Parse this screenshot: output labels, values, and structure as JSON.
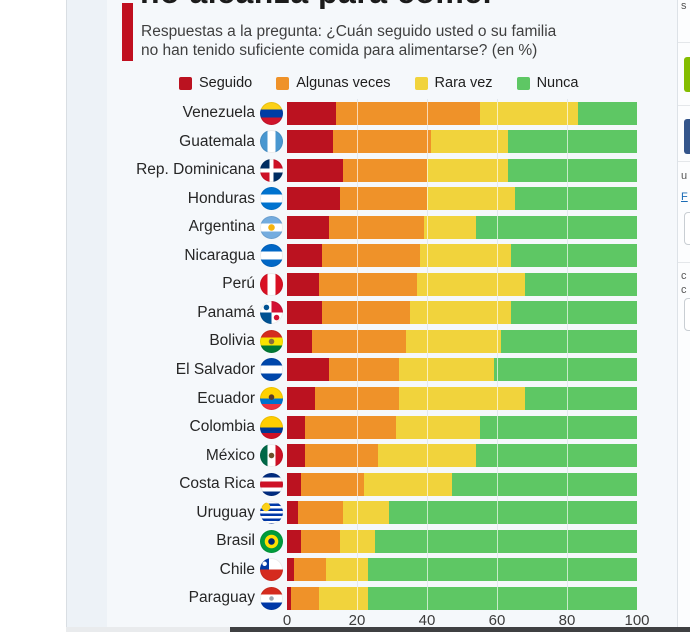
{
  "header": {
    "title_clipped": "no alcanza para comer",
    "subtitle_line1": "Respuestas a la pregunta: ¿Cuán seguido usted o su familia",
    "subtitle_line2": "no han tenido suficiente comida para alimentarse? (en %)",
    "accent_color": "#c00f1f"
  },
  "chart_data": {
    "type": "bar",
    "orientation": "horizontal",
    "stacked": true,
    "title": "no alcanza para comer",
    "subtitle": "Respuestas a la pregunta: ¿Cuán seguido usted o su familia no han tenido suficiente comida para alimentarse? (en %)",
    "legend": [
      "Seguido",
      "Algunas veces",
      "Rara vez",
      "Nunca"
    ],
    "legend_position": "top",
    "colors": [
      "#bb1220",
      "#ef9229",
      "#f1d33c",
      "#5ec764"
    ],
    "xlim": [
      0,
      100
    ],
    "x_ticks": [
      "0",
      "20",
      "40",
      "60",
      "80",
      "100"
    ],
    "grid": true,
    "categories": [
      "Venezuela",
      "Guatemala",
      "Rep. Dominicana",
      "Honduras",
      "Argentina",
      "Nicaragua",
      "Perú",
      "Panamá",
      "Bolivia",
      "El Salvador",
      "Ecuador",
      "Colombia",
      "México",
      "Costa Rica",
      "Uruguay",
      "Brasil",
      "Chile",
      "Paraguay"
    ],
    "series": [
      {
        "name": "Seguido",
        "values": [
          14,
          13,
          16,
          15,
          12,
          10,
          9,
          10,
          7,
          12,
          8,
          5,
          5,
          4,
          3,
          4,
          2,
          1
        ]
      },
      {
        "name": "Algunas veces",
        "values": [
          41,
          28,
          24,
          25,
          27,
          28,
          28,
          25,
          27,
          20,
          24,
          26,
          21,
          18,
          13,
          11,
          9,
          8
        ]
      },
      {
        "name": "Rara vez",
        "values": [
          28,
          22,
          23,
          25,
          15,
          26,
          31,
          29,
          27,
          27,
          36,
          24,
          28,
          25,
          13,
          10,
          12,
          14
        ]
      },
      {
        "name": "Nunca",
        "values": [
          17,
          37,
          37,
          35,
          46,
          36,
          32,
          36,
          39,
          41,
          32,
          45,
          46,
          53,
          71,
          75,
          77,
          77
        ]
      }
    ]
  },
  "flags": [
    "linear-gradient(180deg,#fcd116 0 33%,#003da5 33% 67%,#cf142b 67%)",
    "linear-gradient(90deg,#4997d0 0 33%,#ffffff 33% 67%,#4997d0 67%)",
    "linear-gradient(90deg,transparent 0 42%,#ffffff 42% 58%,transparent 58%),linear-gradient(180deg,transparent 0 42%,#ffffff 42% 58%,transparent 58%),conic-gradient(#ce1126 0 90deg,#002d62 90deg 180deg,#ce1126 180deg 270deg,#002d62 270deg)",
    "linear-gradient(180deg,#0073cf 0 33%,#ffffff 33% 67%,#0073cf 67%)",
    "radial-gradient(circle at 50% 50%,#f6b40e 0 3px,transparent 3.5px),linear-gradient(180deg,#74acdf 0 33%,#ffffff 33% 67%,#74acdf 67%)",
    "linear-gradient(180deg,#0067c6 0 33%,#ffffff 33% 67%,#0067c6 67%)",
    "linear-gradient(90deg,#d91023 0 33%,#ffffff 33% 67%,#d91023 67%)",
    "radial-gradient(circle at 28% 28%,#005293 0 2.5px,transparent 3px),radial-gradient(circle at 72% 72%,#d21034 0 2.5px,transparent 3px),conic-gradient(#d21034 0 90deg,#ffffff 90deg 180deg,#005293 180deg 270deg,#ffffff 270deg)",
    "radial-gradient(circle at 50% 50%,#8a6d3b 0 2.5px,transparent 3px),linear-gradient(180deg,#d52b1e 0 33%,#f9e300 33% 67%,#007934 67%)",
    "linear-gradient(180deg,#0047ab 0 33%,#ffffff 33% 67%,#0047ab 67%)",
    "radial-gradient(circle at 50% 44%,#5b3a29 0 2.5px,transparent 3px),linear-gradient(180deg,#ffd100 0 50%,#0072ce 50% 75%,#ef3340 75%)",
    "linear-gradient(180deg,#ffcd00 0 50%,#003893 50% 75%,#ce1126 75%)",
    "radial-gradient(circle at 50% 50%,#6b4f2a 0 2.5px,transparent 3px),linear-gradient(90deg,#006847 0 33%,#ffffff 33% 67%,#ce1126 67%)",
    "linear-gradient(180deg,#002b7f 0 20%,#ffffff 20% 38%,#ce1126 38% 62%,#ffffff 62% 80%,#002b7f 80%)",
    "radial-gradient(circle at 26% 26%,#fcd116 0 4px,transparent 4.5px),repeating-linear-gradient(180deg,#ffffff 0 2.5px,#0038a8 2.5px 5px)",
    "radial-gradient(circle at 50% 50%,#002776 0 3px,transparent 3.5px),radial-gradient(circle at 50% 50%,#ffdf00 0 6.5px,transparent 7px),linear-gradient(#009c3b,#009c3b)",
    "radial-gradient(circle at 20% 25%,#ffffff 0 2px,transparent 2.5px),linear-gradient(180deg,transparent 0 50%,#d52b1e 50%),linear-gradient(90deg,#0039a6 0 40%,#ffffff 40%)",
    "radial-gradient(circle at 50% 50%,#9ca5b0 0 2px,transparent 2.5px),linear-gradient(180deg,#d52b1e 0 33%,#ffffff 33% 67%,#0038a8 67%)"
  ],
  "right_panel": {
    "top_fragment": "s",
    "fragment_u": "u",
    "link_fragment": "F",
    "fragment_c1": "c",
    "fragment_c2": "c",
    "green_button_color": "#84bd00",
    "blue_button_color": "#34558b"
  }
}
